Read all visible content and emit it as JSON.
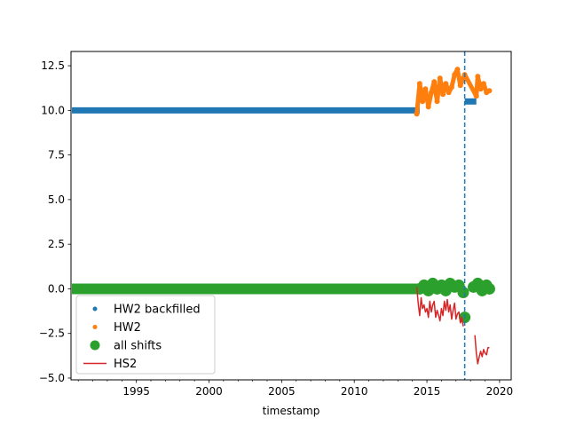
{
  "chart_data": {
    "type": "line",
    "title": "",
    "xlabel": "timestamp",
    "ylabel": "",
    "xlim": [
      1990.5,
      2020.8
    ],
    "ylim": [
      -5.1,
      13.3
    ],
    "x_ticks": [
      1995,
      2000,
      2005,
      2010,
      2015,
      2020
    ],
    "x_tick_labels": [
      "1995",
      "2000",
      "2005",
      "2010",
      "2015",
      "2020"
    ],
    "y_ticks": [
      -5.0,
      -2.5,
      0.0,
      2.5,
      5.0,
      7.5,
      10.0,
      12.5
    ],
    "y_tick_labels": [
      "−5.0",
      "−2.5",
      "0.0",
      "2.5",
      "5.0",
      "7.5",
      "10.0",
      "12.5"
    ],
    "grid": false,
    "legend_position": "lower-left",
    "vline": {
      "x": 2017.6,
      "style": "dashed",
      "color": "#1f77b4"
    },
    "series": [
      {
        "name": "HW2 backfilled",
        "style": "dots",
        "color": "#1f77b4",
        "segments": [
          {
            "x": [
              1990.5,
              2014.5
            ],
            "y": [
              10.0,
              10.0
            ]
          },
          {
            "x": [
              2017.6,
              2018.4
            ],
            "y": [
              10.5,
              10.5
            ]
          }
        ]
      },
      {
        "name": "HW2",
        "style": "dots",
        "color": "#ff7f0e",
        "x": [
          2014.3,
          2014.5,
          2014.7,
          2014.9,
          2015.1,
          2015.3,
          2015.5,
          2015.7,
          2015.9,
          2016.1,
          2016.3,
          2016.5,
          2016.7,
          2016.9,
          2017.1,
          2017.3,
          2017.5,
          2017.6,
          2018.4,
          2018.5,
          2018.7,
          2018.9,
          2019.1,
          2019.3
        ],
        "y": [
          9.8,
          11.5,
          10.5,
          11.2,
          10.2,
          11.0,
          11.6,
          10.5,
          11.8,
          10.9,
          11.5,
          11.0,
          11.3,
          12.0,
          12.3,
          11.4,
          11.8,
          12.0,
          10.8,
          11.9,
          11.2,
          11.5,
          11.0,
          11.1
        ]
      },
      {
        "name": "all shifts",
        "style": "big-dots",
        "color": "#2ca02c",
        "segments": [
          {
            "x": [
              1990.5,
              2014.4
            ],
            "y": [
              0.0,
              0.0
            ]
          }
        ],
        "x": [
          2014.5,
          2014.8,
          2015.1,
          2015.4,
          2015.7,
          2016.0,
          2016.3,
          2016.6,
          2016.9,
          2017.2,
          2017.5,
          2017.6,
          2018.2,
          2018.5,
          2018.8,
          2019.1,
          2019.3
        ],
        "y": [
          0.0,
          0.2,
          -0.1,
          0.3,
          0.0,
          0.2,
          -0.1,
          0.3,
          0.1,
          0.2,
          -0.2,
          -1.6,
          0.1,
          0.3,
          -0.1,
          0.2,
          0.0
        ]
      },
      {
        "name": "HS2",
        "style": "line",
        "color": "#d62728",
        "segments": [
          {
            "x": [
              2014.3,
              2014.4,
              2014.5,
              2014.6,
              2014.7,
              2014.8,
              2014.9,
              2015.0,
              2015.1,
              2015.2,
              2015.3,
              2015.4,
              2015.5,
              2015.6,
              2015.7,
              2015.8,
              2015.9,
              2016.0,
              2016.1,
              2016.2,
              2016.3,
              2016.4,
              2016.5,
              2016.6,
              2016.7,
              2016.8,
              2016.9,
              2017.0,
              2017.1,
              2017.2,
              2017.3,
              2017.4,
              2017.5
            ],
            "y": [
              0.1,
              -0.8,
              -1.5,
              -0.5,
              -1.1,
              -0.9,
              -1.3,
              -1.1,
              -1.6,
              -0.7,
              -1.3,
              -0.9,
              -0.7,
              -1.6,
              -1.2,
              -1.5,
              -1.8,
              -1.1,
              -1.5,
              -0.7,
              -1.2,
              -0.6,
              -1.3,
              -0.9,
              -1.7,
              -1.2,
              -0.8,
              -1.7,
              -1.4,
              -1.3,
              -1.9,
              -1.6,
              -2.1
            ]
          },
          {
            "x": [
              2018.3,
              2018.4,
              2018.5,
              2018.6,
              2018.7,
              2018.8,
              2018.9,
              2019.0,
              2019.1,
              2019.2,
              2019.3
            ],
            "y": [
              -2.6,
              -3.6,
              -4.2,
              -3.8,
              -3.5,
              -3.8,
              -3.4,
              -3.6,
              -3.7,
              -3.3,
              -3.3
            ]
          }
        ]
      }
    ]
  }
}
